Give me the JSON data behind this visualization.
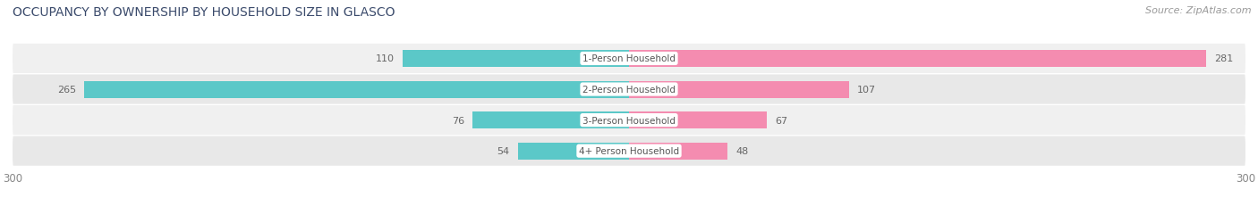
{
  "title": "OCCUPANCY BY OWNERSHIP BY HOUSEHOLD SIZE IN GLASCO",
  "source": "Source: ZipAtlas.com",
  "categories": [
    "1-Person Household",
    "2-Person Household",
    "3-Person Household",
    "4+ Person Household"
  ],
  "owner_values": [
    110,
    265,
    76,
    54
  ],
  "renter_values": [
    281,
    107,
    67,
    48
  ],
  "axis_max": 300,
  "owner_color": "#5bc8c8",
  "renter_color": "#f48cb0",
  "row_bg_even": "#f0f0f0",
  "row_bg_odd": "#e8e8e8",
  "title_fontsize": 10,
  "source_fontsize": 8,
  "bar_label_fontsize": 8,
  "category_fontsize": 7.5,
  "axis_label_fontsize": 8.5,
  "title_color": "#3a4a6b",
  "text_color": "#666666",
  "axis_tick_color": "#888888"
}
